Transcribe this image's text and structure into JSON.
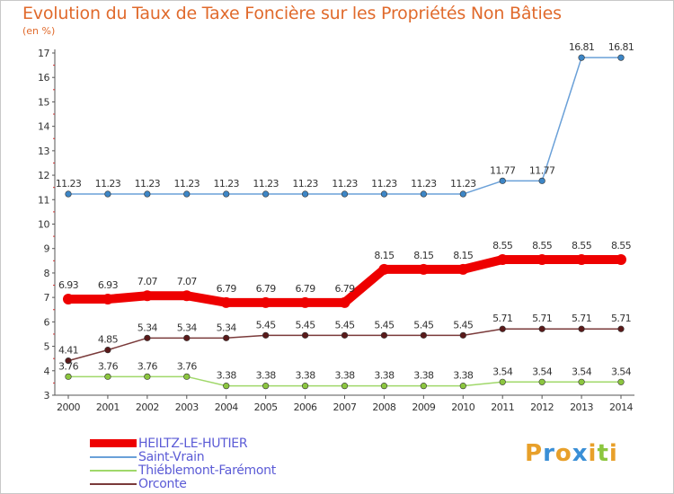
{
  "title": "Evolution du Taux de Taxe Foncière sur les Propriétés Non Bâties",
  "subtitle": "(en %)",
  "logo": {
    "letters": [
      "P",
      "r",
      "o",
      "x",
      "i",
      "t",
      "i"
    ],
    "colors": [
      "#e8a02a",
      "#3a8fd6",
      "#e8a02a",
      "#3a8fd6",
      "#e8a02a",
      "#8cc63f",
      "#e8a02a"
    ]
  },
  "chart_data": {
    "type": "line",
    "title": "Evolution du Taux de Taxe Foncière sur les Propriétés Non Bâties",
    "ylabel": "(en %)",
    "xlabel": "",
    "x": [
      "2000",
      "2001",
      "2002",
      "2003",
      "2004",
      "2005",
      "2006",
      "2007",
      "2008",
      "2009",
      "2010",
      "2011",
      "2012",
      "2013",
      "2014"
    ],
    "ylim": [
      3,
      17
    ],
    "yticks": [
      "3",
      "4",
      "5",
      "6",
      "7",
      "8",
      "9",
      "10",
      "11",
      "12",
      "13",
      "14",
      "15",
      "16",
      "17"
    ],
    "grid": false,
    "legend": "bottom-left",
    "series": [
      {
        "name": "HEILTZ-LE-HUTIER",
        "color": "#ee0000",
        "marker": "#ee0000",
        "emphasis": true,
        "values": [
          6.93,
          6.93,
          7.07,
          7.07,
          6.79,
          6.79,
          6.79,
          6.79,
          8.15,
          8.15,
          8.15,
          8.55,
          8.55,
          8.55,
          8.55
        ],
        "labels": [
          "6.93",
          "6.93",
          "7.07",
          "7.07",
          "6.79",
          "6.79",
          "6.79",
          "6.79",
          "8.15",
          "8.15",
          "8.15",
          "8.55",
          "8.55",
          "8.55",
          "8.55"
        ]
      },
      {
        "name": "Saint-Vrain",
        "color": "#6aa0d8",
        "marker": "#3d86c6",
        "emphasis": false,
        "values": [
          11.23,
          11.23,
          11.23,
          11.23,
          11.23,
          11.23,
          11.23,
          11.23,
          11.23,
          11.23,
          11.23,
          11.77,
          11.77,
          16.81,
          16.81
        ],
        "labels": [
          "11.23",
          "11.23",
          "11.23",
          "11.23",
          "11.23",
          "11.23",
          "11.23",
          "11.23",
          "11.23",
          "11.23",
          "11.23",
          "11.77",
          "11.77",
          "16.81",
          "16.81"
        ]
      },
      {
        "name": "Thiéblemont-Farémont",
        "color": "#a0d86a",
        "marker": "#8cc63f",
        "emphasis": false,
        "values": [
          3.76,
          3.76,
          3.76,
          3.76,
          3.38,
          3.38,
          3.38,
          3.38,
          3.38,
          3.38,
          3.38,
          3.54,
          3.54,
          3.54,
          3.54
        ],
        "labels": [
          "3.76",
          "3.76",
          "3.76",
          "3.76",
          "3.38",
          "3.38",
          "3.38",
          "3.38",
          "3.38",
          "3.38",
          "3.38",
          "3.54",
          "3.54",
          "3.54",
          "3.54"
        ]
      },
      {
        "name": "Orconte",
        "color": "#7a3a3a",
        "marker": "#5a1a1a",
        "emphasis": false,
        "values": [
          4.41,
          4.85,
          5.34,
          5.34,
          5.34,
          5.45,
          5.45,
          5.45,
          5.45,
          5.45,
          5.45,
          5.71,
          5.71,
          5.71,
          5.71
        ],
        "labels": [
          "4.41",
          "4.85",
          "5.34",
          "5.34",
          "5.34",
          "5.45",
          "5.45",
          "5.45",
          "5.45",
          "5.45",
          "5.45",
          "5.71",
          "5.71",
          "5.71",
          "5.71"
        ]
      }
    ]
  }
}
